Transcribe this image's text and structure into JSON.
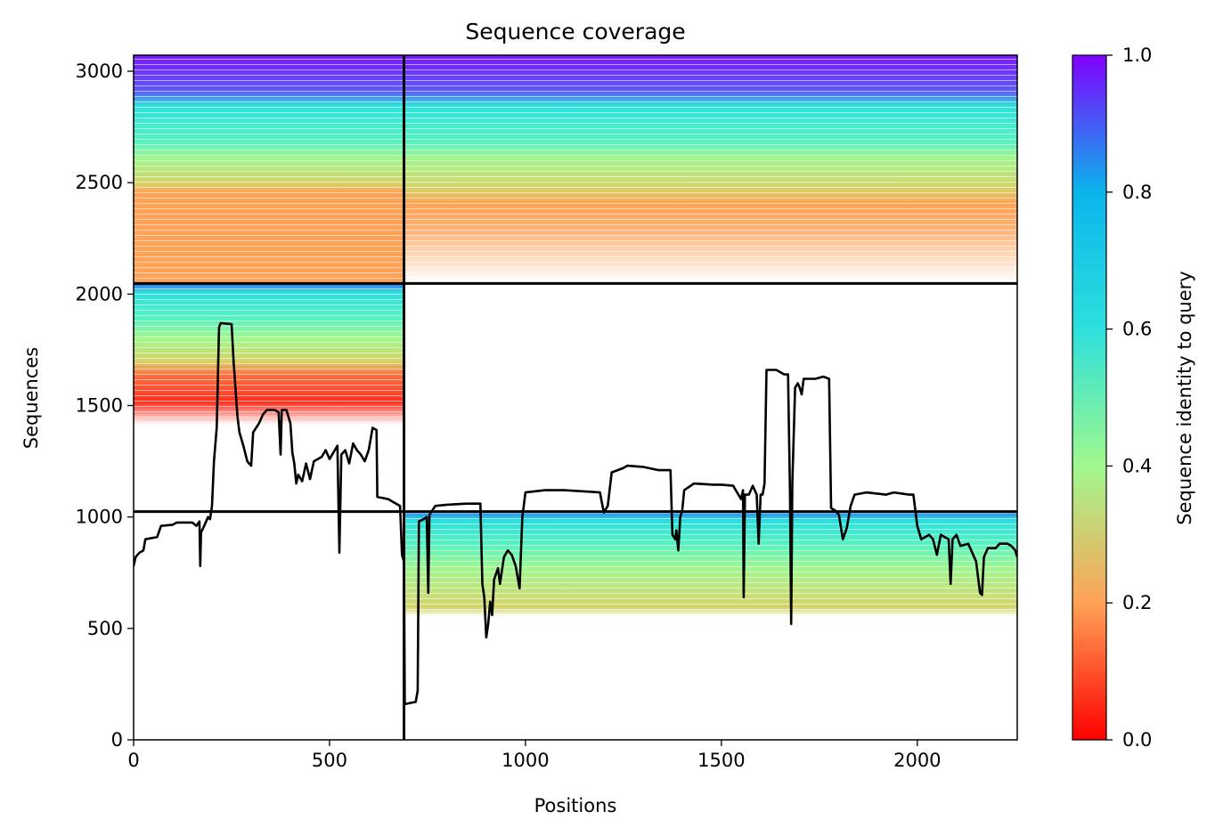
{
  "chart_data": {
    "type": "heatmap",
    "title": "Sequence coverage",
    "xlabel": "Positions",
    "ylabel": "Sequences",
    "xlim": [
      0,
      2255
    ],
    "ylim": [
      0,
      3072
    ],
    "x_ticks": [
      0,
      500,
      1000,
      1500,
      2000
    ],
    "y_ticks": [
      0,
      500,
      1000,
      1500,
      2000,
      2500,
      3000
    ],
    "blocks": [
      {
        "x_range": [
          0,
          690
        ],
        "y_range": [
          2048,
          3072
        ]
      },
      {
        "x_range": [
          690,
          2255
        ],
        "y_range": [
          2048,
          3072
        ]
      },
      {
        "x_range": [
          0,
          690
        ],
        "y_range": [
          1024,
          2048
        ]
      },
      {
        "x_range": [
          690,
          2255
        ],
        "y_range": [
          0,
          1024
        ]
      }
    ],
    "separators": {
      "x": [
        690
      ],
      "y": [
        1024,
        2048
      ]
    },
    "colorbar": {
      "label": "Sequence identity to query",
      "range": [
        0.0,
        1.0
      ],
      "ticks": [
        "0.0",
        "0.2",
        "0.4",
        "0.6",
        "0.8",
        "1.0"
      ],
      "colormap": "rainbow_r",
      "stops": [
        "#ff0000",
        "#ffa256",
        "#a0f88e",
        "#2ce0dc",
        "#0ab5ec",
        "#8000ff"
      ]
    },
    "coverage_line": {
      "color": "#000000",
      "points": [
        [
          0,
          780
        ],
        [
          5,
          820
        ],
        [
          15,
          840
        ],
        [
          25,
          850
        ],
        [
          30,
          900
        ],
        [
          60,
          910
        ],
        [
          70,
          960
        ],
        [
          100,
          965
        ],
        [
          110,
          975
        ],
        [
          150,
          975
        ],
        [
          160,
          960
        ],
        [
          168,
          980
        ],
        [
          170,
          780
        ],
        [
          172,
          930
        ],
        [
          180,
          960
        ],
        [
          190,
          1000
        ],
        [
          195,
          990
        ],
        [
          200,
          1050
        ],
        [
          205,
          1250
        ],
        [
          212,
          1400
        ],
        [
          218,
          1850
        ],
        [
          222,
          1870
        ],
        [
          250,
          1865
        ],
        [
          255,
          1700
        ],
        [
          265,
          1450
        ],
        [
          270,
          1380
        ],
        [
          280,
          1320
        ],
        [
          290,
          1250
        ],
        [
          300,
          1230
        ],
        [
          305,
          1380
        ],
        [
          320,
          1420
        ],
        [
          330,
          1460
        ],
        [
          340,
          1480
        ],
        [
          360,
          1480
        ],
        [
          370,
          1470
        ],
        [
          375,
          1280
        ],
        [
          378,
          1480
        ],
        [
          390,
          1480
        ],
        [
          400,
          1420
        ],
        [
          405,
          1290
        ],
        [
          410,
          1240
        ],
        [
          415,
          1150
        ],
        [
          420,
          1190
        ],
        [
          430,
          1160
        ],
        [
          440,
          1240
        ],
        [
          450,
          1170
        ],
        [
          460,
          1250
        ],
        [
          470,
          1260
        ],
        [
          480,
          1270
        ],
        [
          490,
          1300
        ],
        [
          500,
          1260
        ],
        [
          510,
          1290
        ],
        [
          520,
          1320
        ],
        [
          525,
          840
        ],
        [
          530,
          1280
        ],
        [
          540,
          1300
        ],
        [
          550,
          1240
        ],
        [
          560,
          1330
        ],
        [
          570,
          1300
        ],
        [
          580,
          1280
        ],
        [
          590,
          1250
        ],
        [
          600,
          1300
        ],
        [
          610,
          1400
        ],
        [
          620,
          1390
        ],
        [
          622,
          1090
        ],
        [
          650,
          1080
        ],
        [
          660,
          1070
        ],
        [
          680,
          1050
        ],
        [
          685,
          830
        ],
        [
          690,
          800
        ],
        [
          692,
          160
        ],
        [
          720,
          170
        ],
        [
          725,
          220
        ],
        [
          728,
          980
        ],
        [
          740,
          990
        ],
        [
          748,
          1000
        ],
        [
          752,
          660
        ],
        [
          755,
          1010
        ],
        [
          770,
          1050
        ],
        [
          800,
          1055
        ],
        [
          850,
          1060
        ],
        [
          885,
          1060
        ],
        [
          890,
          700
        ],
        [
          895,
          640
        ],
        [
          900,
          460
        ],
        [
          905,
          520
        ],
        [
          910,
          620
        ],
        [
          915,
          560
        ],
        [
          920,
          720
        ],
        [
          930,
          770
        ],
        [
          935,
          700
        ],
        [
          940,
          760
        ],
        [
          945,
          820
        ],
        [
          955,
          850
        ],
        [
          965,
          830
        ],
        [
          975,
          780
        ],
        [
          985,
          680
        ],
        [
          992,
          1000
        ],
        [
          1000,
          1110
        ],
        [
          1050,
          1120
        ],
        [
          1100,
          1120
        ],
        [
          1150,
          1115
        ],
        [
          1190,
          1110
        ],
        [
          1200,
          1020
        ],
        [
          1210,
          1050
        ],
        [
          1220,
          1200
        ],
        [
          1250,
          1220
        ],
        [
          1260,
          1230
        ],
        [
          1300,
          1225
        ],
        [
          1340,
          1210
        ],
        [
          1370,
          1210
        ],
        [
          1375,
          920
        ],
        [
          1382,
          900
        ],
        [
          1385,
          940
        ],
        [
          1390,
          850
        ],
        [
          1395,
          1000
        ],
        [
          1400,
          1030
        ],
        [
          1405,
          1120
        ],
        [
          1430,
          1150
        ],
        [
          1480,
          1145
        ],
        [
          1500,
          1145
        ],
        [
          1530,
          1140
        ],
        [
          1550,
          1080
        ],
        [
          1555,
          1120
        ],
        [
          1557,
          640
        ],
        [
          1560,
          1100
        ],
        [
          1570,
          1100
        ],
        [
          1580,
          1140
        ],
        [
          1590,
          1100
        ],
        [
          1595,
          880
        ],
        [
          1600,
          1100
        ],
        [
          1605,
          1100
        ],
        [
          1610,
          1150
        ],
        [
          1615,
          1660
        ],
        [
          1640,
          1660
        ],
        [
          1660,
          1640
        ],
        [
          1670,
          1640
        ],
        [
          1675,
          1100
        ],
        [
          1678,
          520
        ],
        [
          1681,
          1150
        ],
        [
          1688,
          1580
        ],
        [
          1695,
          1600
        ],
        [
          1700,
          1580
        ],
        [
          1705,
          1550
        ],
        [
          1710,
          1620
        ],
        [
          1740,
          1620
        ],
        [
          1760,
          1630
        ],
        [
          1775,
          1620
        ],
        [
          1780,
          1040
        ],
        [
          1790,
          1030
        ],
        [
          1800,
          1010
        ],
        [
          1810,
          900
        ],
        [
          1820,
          950
        ],
        [
          1830,
          1050
        ],
        [
          1840,
          1100
        ],
        [
          1870,
          1110
        ],
        [
          1920,
          1100
        ],
        [
          1940,
          1110
        ],
        [
          1980,
          1100
        ],
        [
          1990,
          1100
        ],
        [
          2000,
          960
        ],
        [
          2010,
          900
        ],
        [
          2030,
          920
        ],
        [
          2040,
          900
        ],
        [
          2050,
          830
        ],
        [
          2060,
          920
        ],
        [
          2080,
          900
        ],
        [
          2085,
          700
        ],
        [
          2090,
          900
        ],
        [
          2100,
          920
        ],
        [
          2110,
          870
        ],
        [
          2130,
          880
        ],
        [
          2150,
          800
        ],
        [
          2160,
          660
        ],
        [
          2165,
          650
        ],
        [
          2170,
          820
        ],
        [
          2180,
          860
        ],
        [
          2200,
          860
        ],
        [
          2210,
          880
        ],
        [
          2230,
          880
        ],
        [
          2240,
          870
        ],
        [
          2250,
          850
        ],
        [
          2255,
          820
        ]
      ]
    }
  }
}
